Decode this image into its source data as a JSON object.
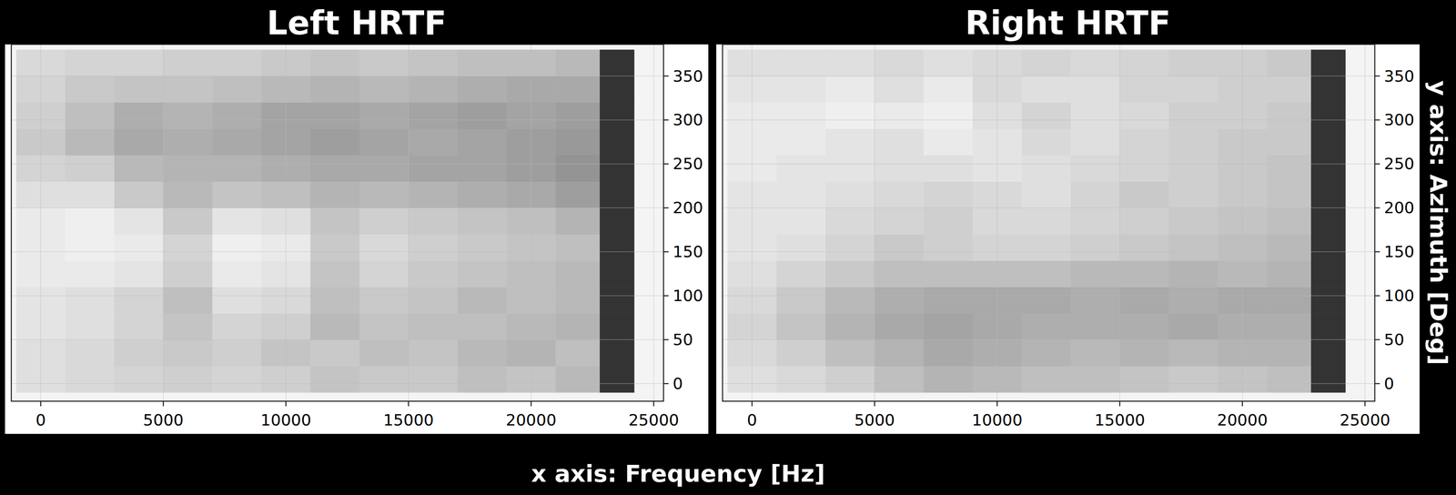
{
  "chart_data": [
    {
      "type": "heatmap",
      "title": "Left HRTF",
      "x_label": "x axis: Frequency [Hz]",
      "xlim": [
        -1200,
        25400
      ],
      "ylim": [
        -20,
        386
      ],
      "xticks": [
        0,
        5000,
        10000,
        15000,
        20000,
        25000
      ],
      "yticks": [
        0,
        50,
        100,
        150,
        200,
        250,
        300,
        350
      ],
      "grid": true,
      "clim": [
        -40,
        0
      ],
      "x_edges": [
        -1000,
        1000,
        3000,
        5000,
        7000,
        9000,
        11000,
        13000,
        15000,
        17000,
        19000,
        21000,
        22800,
        24200
      ],
      "y_edges": [
        -10,
        20,
        50,
        80,
        110,
        140,
        170,
        200,
        230,
        260,
        290,
        320,
        350,
        380
      ],
      "cells": [
        [
          -6,
          -7,
          -8,
          -9,
          -8,
          -9,
          -11,
          -10,
          -10,
          -12,
          -11,
          -13,
          -38
        ],
        [
          -6,
          -7,
          -9,
          -10,
          -9,
          -11,
          -10,
          -12,
          -11,
          -13,
          -14,
          -12,
          -38
        ],
        [
          -5,
          -6,
          -8,
          -11,
          -8,
          -9,
          -13,
          -11,
          -12,
          -12,
          -13,
          -14,
          -38
        ],
        [
          -5,
          -6,
          -8,
          -12,
          -6,
          -7,
          -12,
          -10,
          -11,
          -13,
          -12,
          -13,
          -38
        ],
        [
          -4,
          -4,
          -5,
          -9,
          -4,
          -5,
          -11,
          -8,
          -10,
          -11,
          -12,
          -13,
          -38
        ],
        [
          -4,
          -3,
          -4,
          -8,
          -3,
          -4,
          -10,
          -7,
          -9,
          -10,
          -11,
          -12,
          -38
        ],
        [
          -4,
          -3,
          -5,
          -10,
          -5,
          -6,
          -11,
          -9,
          -10,
          -11,
          -12,
          -14,
          -38
        ],
        [
          -6,
          -6,
          -10,
          -13,
          -11,
          -12,
          -14,
          -13,
          -14,
          -15,
          -16,
          -18,
          -38
        ],
        [
          -8,
          -9,
          -13,
          -14,
          -14,
          -15,
          -16,
          -16,
          -17,
          -17,
          -18,
          -20,
          -38
        ],
        [
          -10,
          -13,
          -16,
          -15,
          -16,
          -17,
          -18,
          -17,
          -16,
          -17,
          -18,
          -19,
          -38
        ],
        [
          -9,
          -12,
          -15,
          -14,
          -15,
          -17,
          -17,
          -16,
          -17,
          -18,
          -17,
          -18,
          -38
        ],
        [
          -8,
          -10,
          -11,
          -11,
          -12,
          -13,
          -14,
          -13,
          -14,
          -15,
          -16,
          -16,
          -38
        ],
        [
          -7,
          -8,
          -8,
          -9,
          -9,
          -10,
          -11,
          -10,
          -11,
          -12,
          -12,
          -13,
          -38
        ]
      ]
    },
    {
      "type": "heatmap",
      "title": "Right HRTF",
      "y_label": "y axis: Azimuth [Deg]",
      "xlim": [
        -1200,
        25400
      ],
      "ylim": [
        -20,
        386
      ],
      "xticks": [
        0,
        5000,
        10000,
        15000,
        20000,
        25000
      ],
      "yticks": [
        0,
        50,
        100,
        150,
        200,
        250,
        300,
        350
      ],
      "grid": true,
      "clim": [
        -40,
        0
      ],
      "x_edges": [
        -1000,
        1000,
        3000,
        5000,
        7000,
        9000,
        11000,
        13000,
        15000,
        17000,
        19000,
        21000,
        22800,
        24200
      ],
      "y_edges": [
        -10,
        20,
        50,
        80,
        110,
        140,
        170,
        200,
        230,
        260,
        290,
        320,
        350,
        380
      ],
      "cells": [
        [
          -6,
          -7,
          -9,
          -12,
          -14,
          -13,
          -12,
          -12,
          -11,
          -10,
          -11,
          -12,
          -38
        ],
        [
          -7,
          -9,
          -12,
          -14,
          -16,
          -15,
          -14,
          -13,
          -14,
          -13,
          -14,
          -14,
          -38
        ],
        [
          -8,
          -11,
          -14,
          -16,
          -17,
          -16,
          -15,
          -15,
          -15,
          -16,
          -15,
          -15,
          -38
        ],
        [
          -7,
          -10,
          -13,
          -15,
          -16,
          -16,
          -16,
          -15,
          -16,
          -15,
          -16,
          -16,
          -38
        ],
        [
          -6,
          -8,
          -10,
          -12,
          -12,
          -12,
          -12,
          -13,
          -13,
          -14,
          -13,
          -14,
          -38
        ],
        [
          -5,
          -6,
          -8,
          -10,
          -9,
          -8,
          -8,
          -9,
          -10,
          -11,
          -12,
          -13,
          -38
        ],
        [
          -5,
          -5,
          -7,
          -8,
          -9,
          -7,
          -7,
          -8,
          -9,
          -10,
          -11,
          -12,
          -38
        ],
        [
          -5,
          -5,
          -6,
          -7,
          -8,
          -7,
          -6,
          -8,
          -10,
          -9,
          -10,
          -11,
          -38
        ],
        [
          -4,
          -5,
          -5,
          -6,
          -6,
          -5,
          -6,
          -7,
          -8,
          -9,
          -10,
          -11,
          -38
        ],
        [
          -4,
          -4,
          -5,
          -6,
          -4,
          -5,
          -7,
          -6,
          -8,
          -9,
          -10,
          -10,
          -38
        ],
        [
          -4,
          -4,
          -3,
          -4,
          -3,
          -6,
          -8,
          -6,
          -7,
          -9,
          -9,
          -10,
          -38
        ],
        [
          -5,
          -5,
          -4,
          -6,
          -4,
          -7,
          -6,
          -6,
          -8,
          -8,
          -9,
          -9,
          -38
        ],
        [
          -6,
          -6,
          -6,
          -7,
          -6,
          -7,
          -8,
          -7,
          -8,
          -9,
          -9,
          -10,
          -38
        ]
      ]
    }
  ]
}
